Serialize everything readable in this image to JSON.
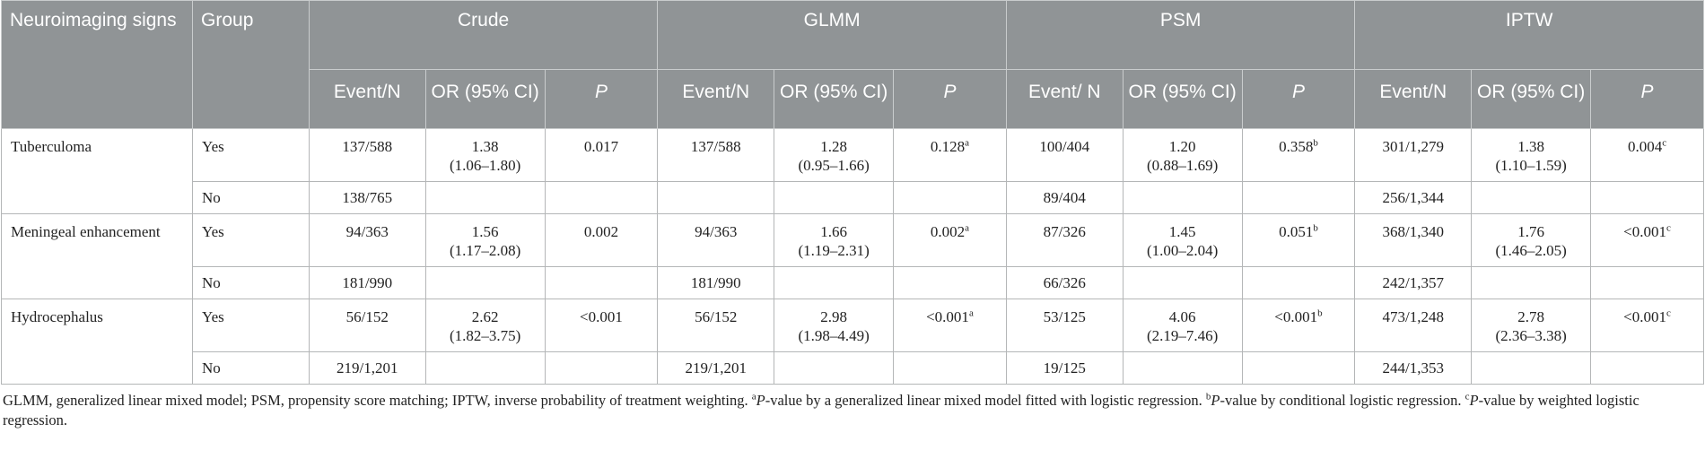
{
  "header": {
    "signs": "Neuroimaging signs",
    "group": "Group",
    "methods": [
      "Crude",
      "GLMM",
      "PSM",
      "IPTW"
    ],
    "sub": {
      "event_n": "Event/N",
      "event_n_psm": "Event/ N",
      "or": "OR (95% CI)",
      "p": "P"
    }
  },
  "rows": [
    {
      "sign": "Tuberculoma",
      "yes": {
        "group": "Yes",
        "crude": {
          "event": "137/588",
          "or": "1.38",
          "ci": "(1.06–1.80)",
          "p": "0.017",
          "sup": ""
        },
        "glmm": {
          "event": "137/588",
          "or": "1.28",
          "ci": "(0.95–1.66)",
          "p": "0.128",
          "sup": "a"
        },
        "psm": {
          "event": "100/404",
          "or": "1.20",
          "ci": "(0.88–1.69)",
          "p": "0.358",
          "sup": "b"
        },
        "iptw": {
          "event": "301/1,279",
          "or": "1.38",
          "ci": "(1.10–1.59)",
          "p": "0.004",
          "sup": "c"
        }
      },
      "no": {
        "group": "No",
        "crude": "138/765",
        "glmm": "",
        "psm": "89/404",
        "iptw": "256/1,344"
      }
    },
    {
      "sign": "Meningeal enhancement",
      "yes": {
        "group": "Yes",
        "crude": {
          "event": "94/363",
          "or": "1.56",
          "ci": "(1.17–2.08)",
          "p": "0.002",
          "sup": ""
        },
        "glmm": {
          "event": "94/363",
          "or": "1.66",
          "ci": "(1.19–2.31)",
          "p": "0.002",
          "sup": "a"
        },
        "psm": {
          "event": "87/326",
          "or": "1.45",
          "ci": "(1.00–2.04)",
          "p": "0.051",
          "sup": "b"
        },
        "iptw": {
          "event": "368/1,340",
          "or": "1.76",
          "ci": "(1.46–2.05)",
          "p": "<0.001",
          "sup": "c"
        }
      },
      "no": {
        "group": "No",
        "crude": "181/990",
        "glmm": "181/990",
        "psm": "66/326",
        "iptw": "242/1,357"
      }
    },
    {
      "sign": "Hydrocephalus",
      "yes": {
        "group": "Yes",
        "crude": {
          "event": "56/152",
          "or": "2.62",
          "ci": "(1.82–3.75)",
          "p": "<0.001",
          "sup": ""
        },
        "glmm": {
          "event": "56/152",
          "or": "2.98",
          "ci": "(1.98–4.49)",
          "p": "<0.001",
          "sup": "a"
        },
        "psm": {
          "event": "53/125",
          "or": "4.06",
          "ci": "(2.19–7.46)",
          "p": "<0.001",
          "sup": "b"
        },
        "iptw": {
          "event": "473/1,248",
          "or": "2.78",
          "ci": "(2.36–3.38)",
          "p": "<0.001",
          "sup": "c"
        }
      },
      "no": {
        "group": "No",
        "crude": "219/1,201",
        "glmm": "219/1,201",
        "psm": "19/125",
        "iptw": "244/1,353"
      }
    }
  ],
  "footnote": {
    "abbrev": "GLMM, generalized linear mixed model; PSM, propensity score matching; IPTW, inverse probability of treatment weighting.",
    "a_mark": "a",
    "a_p": "P",
    "a_text": "-value by a generalized linear mixed model fitted with logistic regression.",
    "b_mark": "b",
    "b_p": "P",
    "b_text": "-value by conditional logistic regression.",
    "c_mark": "c",
    "c_p": "P",
    "c_text": "-value by weighted logistic regression."
  }
}
